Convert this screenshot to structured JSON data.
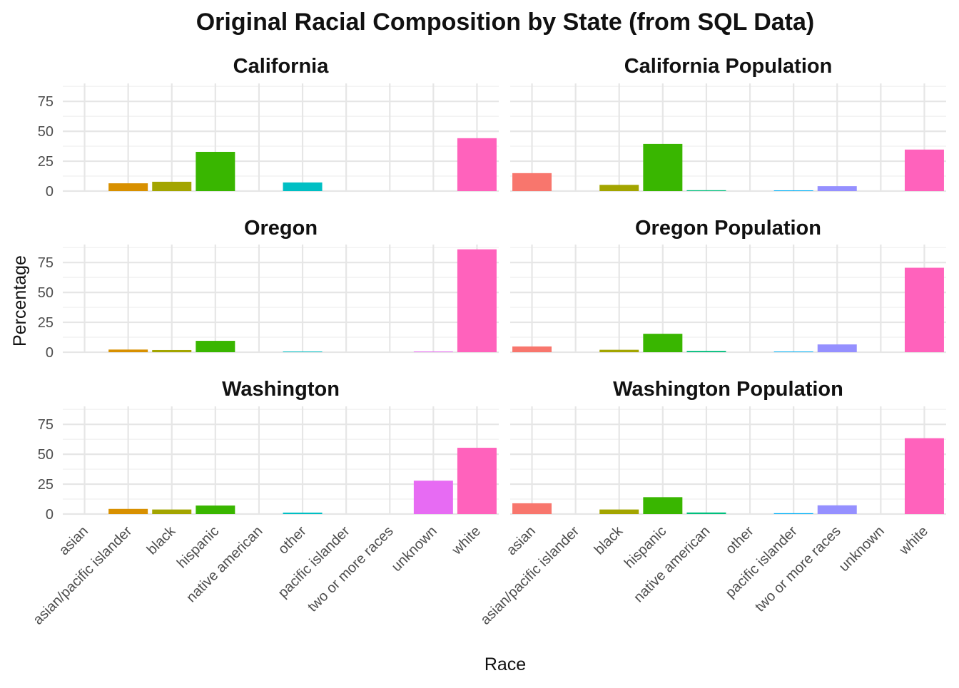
{
  "chart_data": {
    "type": "bar",
    "title": "Original Racial Composition by State (from SQL Data)",
    "xlabel": "Race",
    "ylabel": "Percentage",
    "ylim": [
      0,
      90
    ],
    "yticks": [
      0,
      25,
      50,
      75
    ],
    "grid": true,
    "legend": "none",
    "categories": [
      "asian",
      "asian/pacific islander",
      "black",
      "hispanic",
      "native american",
      "other",
      "pacific islander",
      "two or more races",
      "unknown",
      "white"
    ],
    "category_colors": [
      "#F8766D",
      "#D89000",
      "#A3A500",
      "#39B600",
      "#00BF7D",
      "#00BFC4",
      "#00B0F6",
      "#9590FF",
      "#E76BF3",
      "#FF62BC"
    ],
    "panels": [
      {
        "title": "California",
        "values": [
          0,
          6.5,
          7.8,
          32.8,
          0,
          7.2,
          0,
          0,
          0,
          44.2
        ]
      },
      {
        "title": "California Population",
        "values": [
          15.0,
          0,
          5.2,
          39.4,
          0.7,
          0,
          0.4,
          4.1,
          0,
          34.7
        ]
      },
      {
        "title": "Oregon",
        "values": [
          0,
          2.2,
          1.8,
          9.5,
          0,
          0.4,
          0,
          0,
          0.6,
          86.0
        ]
      },
      {
        "title": "Oregon Population",
        "values": [
          4.8,
          0,
          2.0,
          15.4,
          1.1,
          0,
          0.4,
          6.5,
          0,
          70.6
        ]
      },
      {
        "title": "Washington",
        "values": [
          0,
          4.3,
          3.8,
          7.1,
          0,
          1.2,
          0,
          0,
          27.9,
          55.4
        ]
      },
      {
        "title": "Washington Population",
        "values": [
          9.0,
          0,
          3.8,
          14.1,
          1.3,
          0,
          0.7,
          7.3,
          0,
          63.4
        ]
      }
    ]
  }
}
